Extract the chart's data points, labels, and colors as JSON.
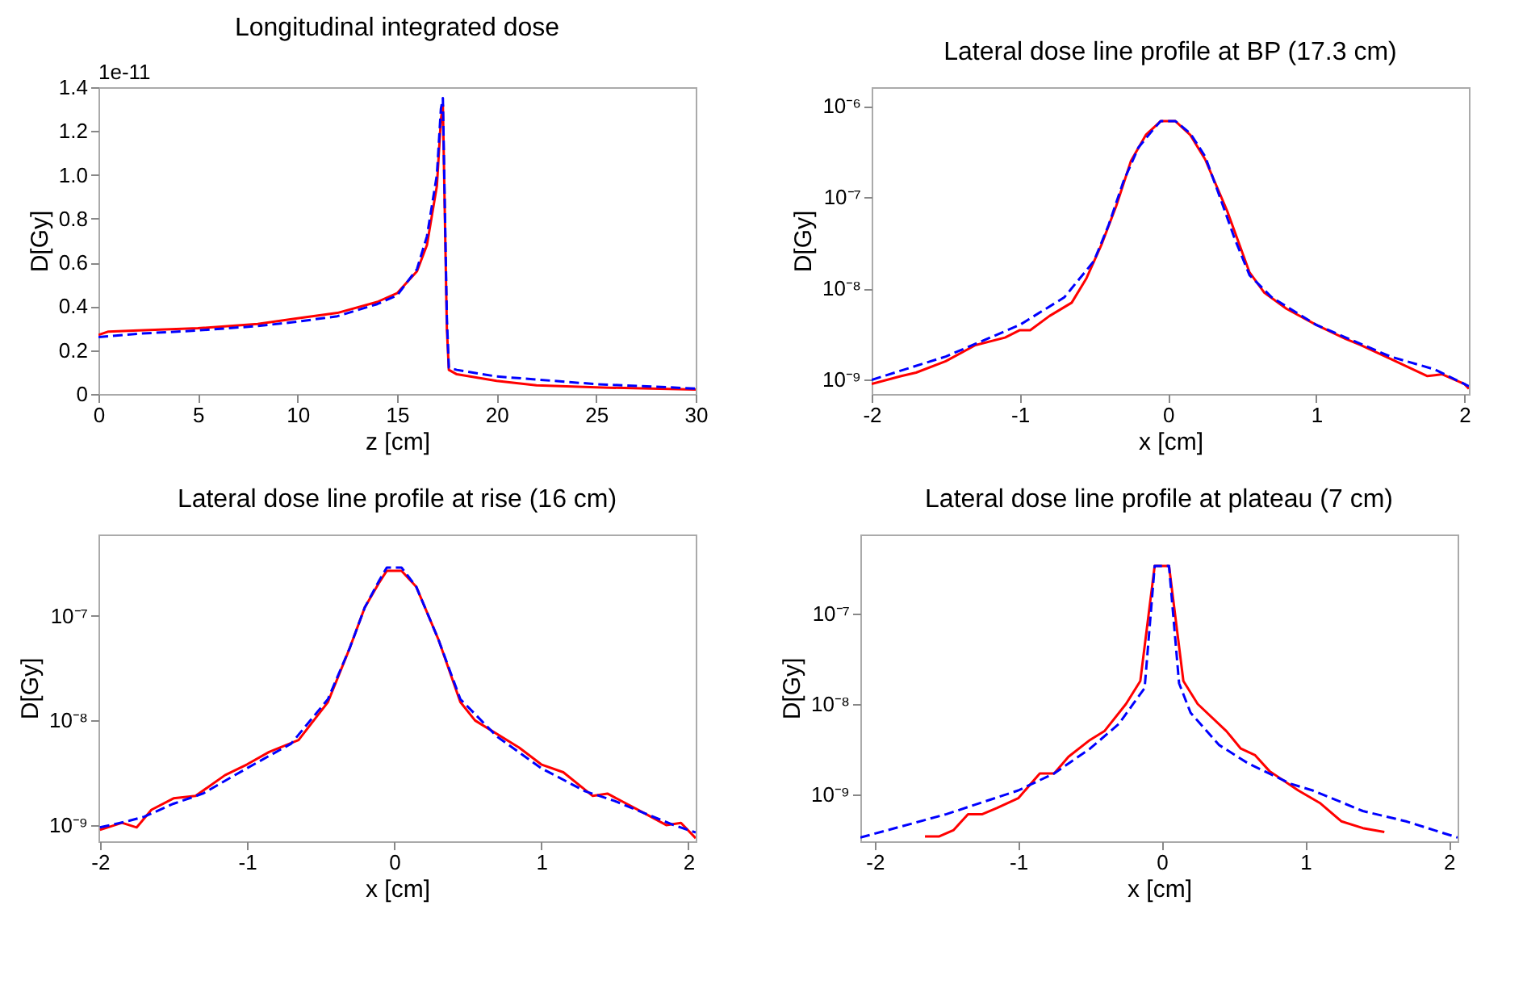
{
  "chart_data": [
    {
      "type": "line",
      "title": "Longitudinal integrated dose",
      "xlabel": "z [cm]",
      "ylabel": "D[Gy]",
      "annotations": [
        "1e-11"
      ],
      "xlim": [
        0,
        30
      ],
      "ylim": [
        0,
        1.4
      ],
      "xticks": [
        0,
        5,
        10,
        15,
        20,
        25,
        30
      ],
      "yticks": [
        0,
        0.2,
        0.4,
        0.6,
        0.8,
        {
          "value": 1,
          "label": "1.0"
        },
        1.2,
        1.4
      ],
      "grid": false,
      "series": [
        {
          "color": "#ff0000",
          "line_style": "solid",
          "x": [
            0,
            0.5,
            2,
            5,
            8,
            10,
            12,
            14,
            15,
            16,
            16.5,
            17,
            17.2,
            17.3,
            17.5,
            17.6,
            18,
            20,
            22,
            25,
            30
          ],
          "values": [
            0.27,
            0.285,
            0.29,
            0.3,
            0.32,
            0.345,
            0.37,
            0.42,
            0.46,
            0.56,
            0.68,
            0.95,
            1.25,
            1.32,
            0.3,
            0.11,
            0.09,
            0.06,
            0.04,
            0.03,
            0.02
          ]
        },
        {
          "color": "#0000ff",
          "line_style": "dashed",
          "x": [
            0,
            2,
            5,
            8,
            10,
            12,
            14,
            15,
            16,
            16.5,
            17,
            17.2,
            17.3,
            17.5,
            17.6,
            18,
            20,
            25,
            30
          ],
          "values": [
            0.26,
            0.275,
            0.29,
            0.31,
            0.33,
            0.355,
            0.41,
            0.45,
            0.57,
            0.72,
            1.0,
            1.3,
            1.35,
            0.35,
            0.12,
            0.11,
            0.08,
            0.045,
            0.025
          ]
        }
      ]
    },
    {
      "type": "line",
      "title": "Lateral dose line profile at BP (17.3 cm)",
      "xlabel": "x [cm]",
      "ylabel": "D[Gy]",
      "log": "y",
      "xlim": [
        -2,
        2.03
      ],
      "ylim": [
        7e-10,
        1.6e-06
      ],
      "xticks": [
        -2,
        -1,
        0,
        1,
        2
      ],
      "yticks": [
        {
          "value": 1e-09,
          "label": "10⁻⁹"
        },
        {
          "value": 1e-08,
          "label": "10⁻⁸"
        },
        {
          "value": 1e-07,
          "label": "10⁻⁷"
        },
        {
          "value": 1e-06,
          "label": "10⁻⁶"
        }
      ],
      "grid": false,
      "series": [
        {
          "color": "#ff0000",
          "line_style": "solid",
          "x": [
            -2,
            -1.8,
            -1.7,
            -1.5,
            -1.3,
            -1.1,
            -1,
            -0.93,
            -0.8,
            -0.65,
            -0.55,
            -0.45,
            -0.35,
            -0.25,
            -0.15,
            -0.05,
            0.05,
            0.15,
            0.25,
            0.4,
            0.55,
            0.65,
            0.8,
            1,
            1.2,
            1.3,
            1.5,
            1.75,
            1.85,
            2,
            2.03
          ],
          "values": [
            9e-10,
            1.1e-09,
            1.2e-09,
            1.6e-09,
            2.4e-09,
            2.9e-09,
            3.5e-09,
            3.5e-09,
            5e-09,
            7e-09,
            1.3e-08,
            3e-08,
            8e-08,
            2.5e-07,
            4.8e-07,
            6.8e-07,
            6.8e-07,
            4.8e-07,
            2.6e-07,
            7e-08,
            1.5e-08,
            9e-09,
            6e-09,
            4e-09,
            2.8e-09,
            2.4e-09,
            1.7e-09,
            1.1e-09,
            1.15e-09,
            9e-10,
            8e-10
          ]
        },
        {
          "color": "#0000ff",
          "line_style": "dashed",
          "x": [
            -2,
            -1.5,
            -1,
            -0.7,
            -0.5,
            -0.4,
            -0.3,
            -0.2,
            -0.1,
            -0.05,
            0.05,
            0.15,
            0.25,
            0.35,
            0.45,
            0.55,
            0.7,
            1,
            1.5,
            1.8,
            2,
            2.03
          ],
          "values": [
            1e-09,
            1.8e-09,
            4e-09,
            8e-09,
            2e-08,
            5e-08,
            1.5e-07,
            3.5e-07,
            5.5e-07,
            6.8e-07,
            6.8e-07,
            5e-07,
            2.8e-07,
            1e-07,
            3.5e-08,
            1.4e-08,
            8e-09,
            4e-09,
            1.8e-09,
            1.3e-09,
            9e-10,
            8.5e-10
          ]
        }
      ]
    },
    {
      "type": "line",
      "title": "Lateral dose line profile at rise (16 cm)",
      "xlabel": "x [cm]",
      "ylabel": "D[Gy]",
      "log": "y",
      "xlim": [
        -2.01,
        2.05
      ],
      "ylim": [
        7e-10,
        6e-07
      ],
      "xticks": [
        -2,
        -1,
        0,
        1,
        2
      ],
      "yticks": [
        {
          "value": 1e-09,
          "label": "10⁻⁹"
        },
        {
          "value": 1e-08,
          "label": "10⁻⁸"
        },
        {
          "value": 1e-07,
          "label": "10⁻⁷"
        }
      ],
      "grid": false,
      "series": [
        {
          "color": "#ff0000",
          "line_style": "solid",
          "x": [
            -2,
            -1.85,
            -1.75,
            -1.65,
            -1.5,
            -1.35,
            -1.15,
            -1,
            -0.85,
            -0.65,
            -0.45,
            -0.3,
            -0.2,
            -0.1,
            -0.05,
            0.05,
            0.15,
            0.3,
            0.45,
            0.55,
            0.85,
            1,
            1.15,
            1.35,
            1.45,
            1.7,
            1.85,
            1.95,
            2.05
          ],
          "values": [
            9e-10,
            1.05e-09,
            9.5e-10,
            1.4e-09,
            1.8e-09,
            1.9e-09,
            3e-09,
            3.8e-09,
            5e-09,
            6.5e-09,
            1.5e-08,
            5e-08,
            1.2e-07,
            2.1e-07,
            2.7e-07,
            2.7e-07,
            1.9e-07,
            6e-08,
            1.5e-08,
            1e-08,
            5.5e-09,
            3.8e-09,
            3.2e-09,
            1.9e-09,
            2e-09,
            1.3e-09,
            1e-09,
            1.05e-09,
            7.5e-10
          ]
        },
        {
          "color": "#0000ff",
          "line_style": "dashed",
          "x": [
            -2,
            -1.8,
            -1.7,
            -1.5,
            -1.3,
            -1,
            -0.7,
            -0.45,
            -0.3,
            -0.2,
            -0.1,
            -0.05,
            0.05,
            0.15,
            0.3,
            0.45,
            0.7,
            1,
            1.3,
            1.5,
            1.7,
            1.9,
            2.05
          ],
          "values": [
            9.5e-10,
            1.1e-09,
            1.2e-09,
            1.6e-09,
            2e-09,
            3.5e-09,
            6e-09,
            1.6e-08,
            5e-08,
            1.2e-07,
            2.2e-07,
            2.9e-07,
            2.9e-07,
            1.9e-07,
            6e-08,
            1.6e-08,
            7e-09,
            3.5e-09,
            2.1e-09,
            1.7e-09,
            1.3e-09,
            1e-09,
            8.5e-10
          ]
        }
      ]
    },
    {
      "type": "line",
      "title": "Lateral dose line profile at plateau (7 cm)",
      "xlabel": "x [cm]",
      "ylabel": "D[Gy]",
      "log": "y",
      "xlim": [
        -2.1,
        2.06
      ],
      "ylim": [
        3e-10,
        7.6e-07
      ],
      "xticks": [
        -2,
        -1,
        0,
        1,
        2
      ],
      "yticks": [
        {
          "value": 1e-09,
          "label": "10⁻⁹"
        },
        {
          "value": 1e-08,
          "label": "10⁻⁸"
        },
        {
          "value": 1e-07,
          "label": "10⁻⁷"
        }
      ],
      "grid": false,
      "series": [
        {
          "color": "#ff0000",
          "line_style": "solid",
          "x": [
            -1.65,
            -1.55,
            -1.45,
            -1.35,
            -1.25,
            -1.15,
            -1,
            -0.85,
            -0.75,
            -0.65,
            -0.5,
            -0.4,
            -0.25,
            -0.15,
            -0.05,
            0.05,
            0.15,
            0.25,
            0.45,
            0.55,
            0.65,
            0.75,
            0.95,
            1.1,
            1.25,
            1.4,
            1.55
          ],
          "values": [
            3.4e-10,
            3.4e-10,
            4e-10,
            6e-10,
            6e-10,
            7e-10,
            9e-10,
            1.7e-09,
            1.7e-09,
            2.6e-09,
            4e-09,
            5e-09,
            1e-08,
            1.8e-08,
            3.4e-07,
            3.4e-07,
            1.8e-08,
            1e-08,
            5e-09,
            3.2e-09,
            2.7e-09,
            1.8e-09,
            1.1e-09,
            8e-10,
            5e-10,
            4.2e-10,
            3.8e-10
          ]
        },
        {
          "color": "#0000ff",
          "line_style": "dashed",
          "x": [
            -2.1,
            -1.5,
            -1,
            -0.75,
            -0.5,
            -0.3,
            -0.2,
            -0.12,
            -0.05,
            0.05,
            0.12,
            0.2,
            0.4,
            0.6,
            0.9,
            1.05,
            1.4,
            1.7,
            2.06
          ],
          "values": [
            3.3e-10,
            6e-10,
            1.1e-09,
            1.7e-09,
            3.2e-09,
            6e-09,
            1e-08,
            1.5e-08,
            3.4e-07,
            3.4e-07,
            1.7e-08,
            8e-09,
            3.5e-09,
            2.2e-09,
            1.3e-09,
            1.1e-09,
            6.5e-10,
            5e-10,
            3.3e-10
          ]
        }
      ]
    }
  ]
}
